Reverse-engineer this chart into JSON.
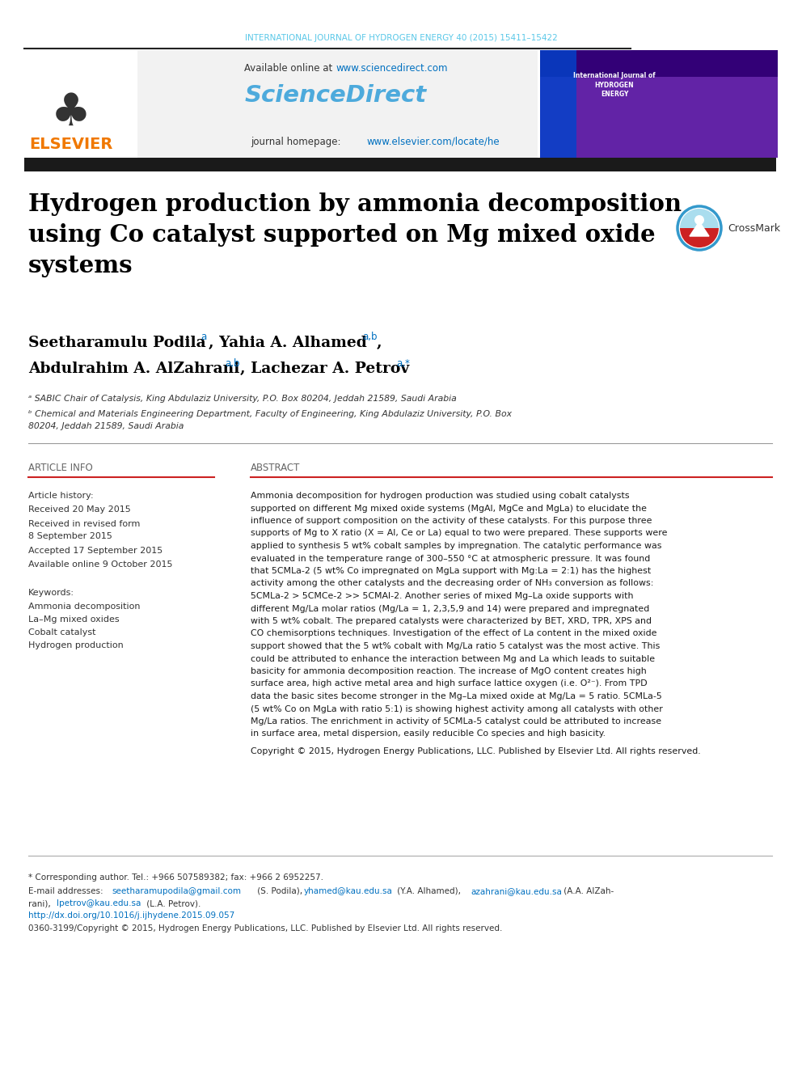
{
  "bg_color": "#ffffff",
  "journal_line": "INTERNATIONAL JOURNAL OF HYDROGEN ENERGY 40 (2015) 15411–15422",
  "journal_line_color": "#5bc8e8",
  "elsevier_color": "#f07800",
  "available_online": "Available online at www.sciencedirect.com",
  "sciencedirect_color": "#4daadc",
  "sciencedirect_text": "ScienceDirect",
  "journal_hp_link_color": "#0070c0",
  "title_color": "#000000",
  "section_article_info": "ARTICLE INFO",
  "section_abstract": "ABSTRACT",
  "article_history_label": "Article history:",
  "received": "Received 20 May 2015",
  "accepted": "Accepted 17 September 2015",
  "online": "Available online 9 October 2015",
  "keywords_label": "Keywords:",
  "keywords": [
    "Ammonia decomposition",
    "La–Mg mixed oxides",
    "Cobalt catalyst",
    "Hydrogen production"
  ],
  "abstract_lines": [
    "Ammonia decomposition for hydrogen production was studied using cobalt catalysts",
    "supported on different Mg mixed oxide systems (MgAl, MgCe and MgLa) to elucidate the",
    "influence of support composition on the activity of these catalysts. For this purpose three",
    "supports of Mg to X ratio (X = Al, Ce or La) equal to two were prepared. These supports were",
    "applied to synthesis 5 wt% cobalt samples by impregnation. The catalytic performance was",
    "evaluated in the temperature range of 300–550 °C at atmospheric pressure. It was found",
    "that 5CMLa-2 (5 wt% Co impregnated on MgLa support with Mg:La = 2:1) has the highest",
    "activity among the other catalysts and the decreasing order of NH₃ conversion as follows:",
    "5CMLa-2 > 5CMCe-2 >> 5CMAl-2. Another series of mixed Mg–La oxide supports with",
    "different Mg/La molar ratios (Mg/La = 1, 2,3,5,9 and 14) were prepared and impregnated",
    "with 5 wt% cobalt. The prepared catalysts were characterized by BET, XRD, TPR, XPS and",
    "CO chemisorptions techniques. Investigation of the effect of La content in the mixed oxide",
    "support showed that the 5 wt% cobalt with Mg/La ratio 5 catalyst was the most active. This",
    "could be attributed to enhance the interaction between Mg and La which leads to suitable",
    "basicity for ammonia decomposition reaction. The increase of MgO content creates high",
    "surface area, high active metal area and high surface lattice oxygen (i.e. O²⁻). From TPD",
    "data the basic sites become stronger in the Mg–La mixed oxide at Mg/La = 5 ratio. 5CMLa-5",
    "(5 wt% Co on MgLa with ratio 5:1) is showing highest activity among all catalysts with other",
    "Mg/La ratios. The enrichment in activity of 5CMLa-5 catalyst could be attributed to increase",
    "in surface area, metal dispersion, easily reducible Co species and high basicity."
  ],
  "copyright": "Copyright © 2015, Hydrogen Energy Publications, LLC. Published by Elsevier Ltd. All rights reserved.",
  "footer_star": "* Corresponding author. Tel.: +966 507589382; fax: +966 2 6952257.",
  "footer_doi": "http://dx.doi.org/10.1016/j.ijhydene.2015.09.057",
  "footer_issn": "0360-3199/Copyright © 2015, Hydrogen Energy Publications, LLC. Published by Elsevier Ltd. All rights reserved.",
  "link_color": "#0070c0",
  "dark_bar": "#1a1a1a",
  "red_line": "#cc2222",
  "affil_a": "ᵃ SABIC Chair of Catalysis, King Abdulaziz University, P.O. Box 80204, Jeddah 21589, Saudi Arabia",
  "affil_b1": "ᵇ Chemical and Materials Engineering Department, Faculty of Engineering, King Abdulaziz University, P.O. Box",
  "affil_b2": "80204, Jeddah 21589, Saudi Arabia"
}
